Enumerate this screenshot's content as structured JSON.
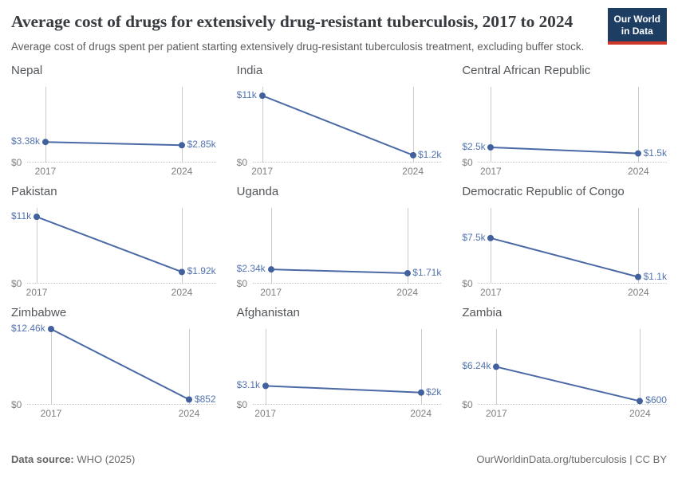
{
  "header": {
    "title": "Average cost of drugs for extensively drug-resistant tuberculosis, 2017 to 2024",
    "subtitle": "Average cost of drugs spent per patient starting extensively drug-resistant tuberculosis treatment, excluding buffer stock.",
    "logo_line1": "Our World",
    "logo_line2": "in Data"
  },
  "chart_data": {
    "type": "line",
    "x": [
      2017,
      2024
    ],
    "x_tick_labels": [
      "2017",
      "2024"
    ],
    "ylim": [
      0,
      12460
    ],
    "y_zero_label": "$0",
    "grid": "vertical gridlines at 2017 and 2024; dotted zero baseline; shared y-scale across facets",
    "legend": "none",
    "facets": [
      {
        "title": "Nepal",
        "values": [
          3380,
          2850
        ],
        "labels": [
          "$3.38k",
          "$2.85k"
        ]
      },
      {
        "title": "India",
        "values": [
          11000,
          1200
        ],
        "labels": [
          "$11k",
          "$1.2k"
        ]
      },
      {
        "title": "Central African Republic",
        "values": [
          2500,
          1500
        ],
        "labels": [
          "$2.5k",
          "$1.5k"
        ]
      },
      {
        "title": "Pakistan",
        "values": [
          11000,
          1920
        ],
        "labels": [
          "$11k",
          "$1.92k"
        ]
      },
      {
        "title": "Uganda",
        "values": [
          2340,
          1710
        ],
        "labels": [
          "$2.34k",
          "$1.71k"
        ]
      },
      {
        "title": "Democratic Republic of Congo",
        "values": [
          7500,
          1100
        ],
        "labels": [
          "$7.5k",
          "$1.1k"
        ]
      },
      {
        "title": "Zimbabwe",
        "values": [
          12460,
          852
        ],
        "labels": [
          "$12.46k",
          "$852"
        ]
      },
      {
        "title": "Afghanistan",
        "values": [
          3100,
          2000
        ],
        "labels": [
          "$3.1k",
          "$2k"
        ]
      },
      {
        "title": "Zambia",
        "values": [
          6240,
          600
        ],
        "labels": [
          "$6.24k",
          "$600"
        ]
      }
    ]
  },
  "footer": {
    "source_label": "Data source:",
    "source_value": "WHO (2025)",
    "attribution": "OurWorldinData.org/tuberculosis | CC BY"
  },
  "colors": {
    "series_line": "#4a69a5",
    "series_dot": "#41619e",
    "value_label": "#5273af",
    "gridline": "#cbcbcb",
    "axis_text": "#7f7f7f",
    "logo_navy": "#1d3d63",
    "logo_red": "#d0362a"
  }
}
